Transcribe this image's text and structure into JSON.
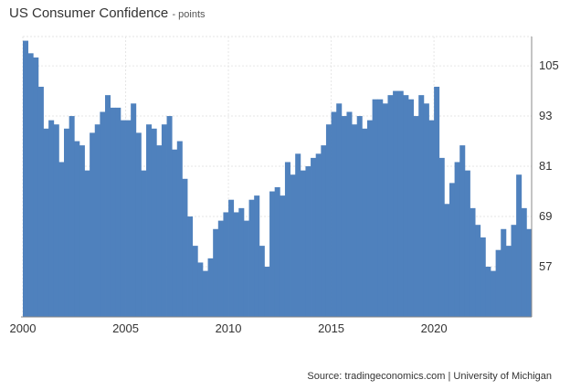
{
  "header": {
    "title": "US Consumer Confidence",
    "subtitle": "- points"
  },
  "source": "Source: tradingeconomics.com | University of Michigan",
  "colors": {
    "bar": "#4f81bd",
    "grid": "#e6e6e6",
    "axis": "#888888"
  },
  "chart_data": {
    "type": "bar",
    "title": "US Consumer Confidence",
    "subtitle": "- points",
    "xlabel": "",
    "ylabel": "",
    "xlim": [
      2000.0,
      2024.75
    ],
    "ylim": [
      45,
      112
    ],
    "y_ticks": [
      57,
      69,
      81,
      93,
      105
    ],
    "x_ticks": [
      "2000",
      "2005",
      "2010",
      "2015",
      "2020"
    ],
    "grid": true,
    "legend": "none",
    "series": [
      {
        "x": [
          2000.0,
          2000.25,
          2000.5,
          2000.75,
          2001.0,
          2001.25,
          2001.5,
          2001.75,
          2002.0,
          2002.25,
          2002.5,
          2002.75,
          2003.0,
          2003.25,
          2003.5,
          2003.75,
          2004.0,
          2004.25,
          2004.5,
          2004.75,
          2005.0,
          2005.25,
          2005.5,
          2005.75,
          2006.0,
          2006.25,
          2006.5,
          2006.75,
          2007.0,
          2007.25,
          2007.5,
          2007.75,
          2008.0,
          2008.25,
          2008.5,
          2008.75,
          2009.0,
          2009.25,
          2009.5,
          2009.75,
          2010.0,
          2010.25,
          2010.5,
          2010.75,
          2011.0,
          2011.25,
          2011.5,
          2011.75,
          2012.0,
          2012.25,
          2012.5,
          2012.75,
          2013.0,
          2013.25,
          2013.5,
          2013.75,
          2014.0,
          2014.25,
          2014.5,
          2014.75,
          2015.0,
          2015.25,
          2015.5,
          2015.75,
          2016.0,
          2016.25,
          2016.5,
          2016.75,
          2017.0,
          2017.25,
          2017.5,
          2017.75,
          2018.0,
          2018.25,
          2018.5,
          2018.75,
          2019.0,
          2019.25,
          2019.5,
          2019.75,
          2020.0,
          2020.25,
          2020.5,
          2020.75,
          2021.0,
          2021.25,
          2021.5,
          2021.75,
          2022.0,
          2022.25,
          2022.5,
          2022.75,
          2023.0,
          2023.25,
          2023.5,
          2023.75,
          2024.0,
          2024.25,
          2024.5,
          2024.75
        ],
        "values": [
          111,
          108,
          107,
          100,
          90,
          92,
          91,
          82,
          90,
          93,
          87,
          86,
          80,
          89,
          91,
          94,
          98,
          95,
          95,
          92,
          92,
          96,
          89,
          80,
          91,
          90,
          86,
          91,
          93,
          85,
          87,
          78,
          69,
          62,
          58,
          56,
          59,
          66,
          68,
          70,
          73,
          70,
          71,
          68,
          73,
          74,
          62,
          57,
          75,
          76,
          74,
          82,
          79,
          84,
          80,
          81,
          83,
          84,
          86,
          91,
          94,
          96,
          93,
          94,
          91,
          93,
          90,
          92,
          97,
          97,
          96,
          98,
          99,
          99,
          98,
          97,
          93,
          98,
          96,
          92,
          100,
          83,
          72,
          77,
          82,
          86,
          80,
          71,
          67,
          64,
          57,
          56,
          61,
          66,
          62,
          67,
          79,
          71,
          66,
          70
        ]
      }
    ]
  }
}
